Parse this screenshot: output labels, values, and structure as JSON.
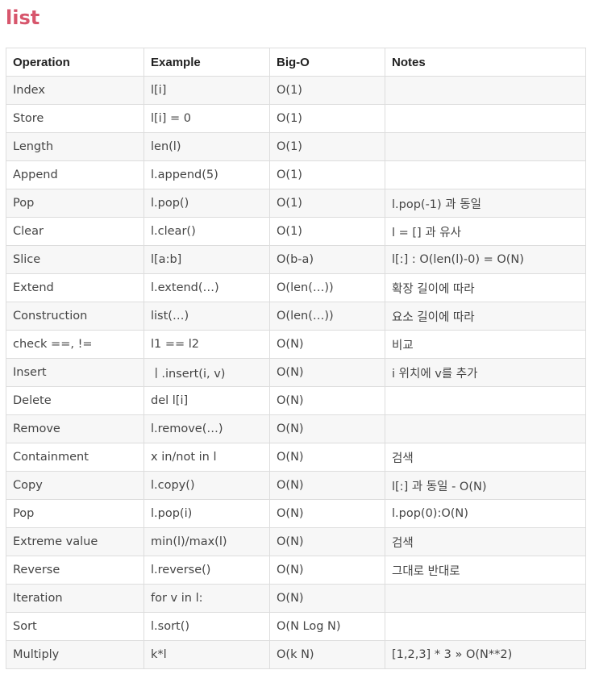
{
  "title": "list",
  "table": {
    "headers": [
      "Operation",
      "Example",
      "Big-O",
      "Notes"
    ],
    "rows": [
      [
        "Index",
        "l[i]",
        "O(1)",
        ""
      ],
      [
        "Store",
        "l[i] = 0",
        "O(1)",
        ""
      ],
      [
        "Length",
        "len(l)",
        "O(1)",
        ""
      ],
      [
        "Append",
        "l.append(5)",
        "O(1)",
        ""
      ],
      [
        "Pop",
        "l.pop()",
        "O(1)",
        "l.pop(-1) 과 동일"
      ],
      [
        "Clear",
        "l.clear()",
        "O(1)",
        "l = [] 과 유사"
      ],
      [
        "Slice",
        "l[a:b]",
        "O(b-a)",
        "l[:] : O(len(l)-0) = O(N)"
      ],
      [
        "Extend",
        "l.extend(…)",
        "O(len(…))",
        "확장 길이에 따라"
      ],
      [
        "Construction",
        "list(…)",
        "O(len(…))",
        "요소 길이에 따라"
      ],
      [
        "check ==, !=",
        "l1 == l2",
        "O(N)",
        "비교"
      ],
      [
        "Insert",
        "ㅣ.insert(i, v)",
        "O(N)",
        "i 위치에 v를 추가"
      ],
      [
        "Delete",
        "del l[i]",
        "O(N)",
        ""
      ],
      [
        "Remove",
        "l.remove(…)",
        "O(N)",
        ""
      ],
      [
        "Containment",
        "x in/not in l",
        "O(N)",
        "검색"
      ],
      [
        "Copy",
        "l.copy()",
        "O(N)",
        "l[:] 과 동일 - O(N)"
      ],
      [
        "Pop",
        "l.pop(i)",
        "O(N)",
        "l.pop(0):O(N)"
      ],
      [
        "Extreme value",
        "min(l)/max(l)",
        "O(N)",
        "검색"
      ],
      [
        "Reverse",
        "l.reverse()",
        "O(N)",
        "그대로 반대로"
      ],
      [
        "Iteration",
        "for v in l:",
        "O(N)",
        ""
      ],
      [
        "Sort",
        "l.sort()",
        "O(N Log N)",
        ""
      ],
      [
        "Multiply",
        "k*l",
        "O(k N)",
        "[1,2,3] * 3 » O(N**2)"
      ]
    ]
  },
  "colors": {
    "title": "#d7566c",
    "border": "#dddddd",
    "stripe": "#f7f7f7"
  }
}
